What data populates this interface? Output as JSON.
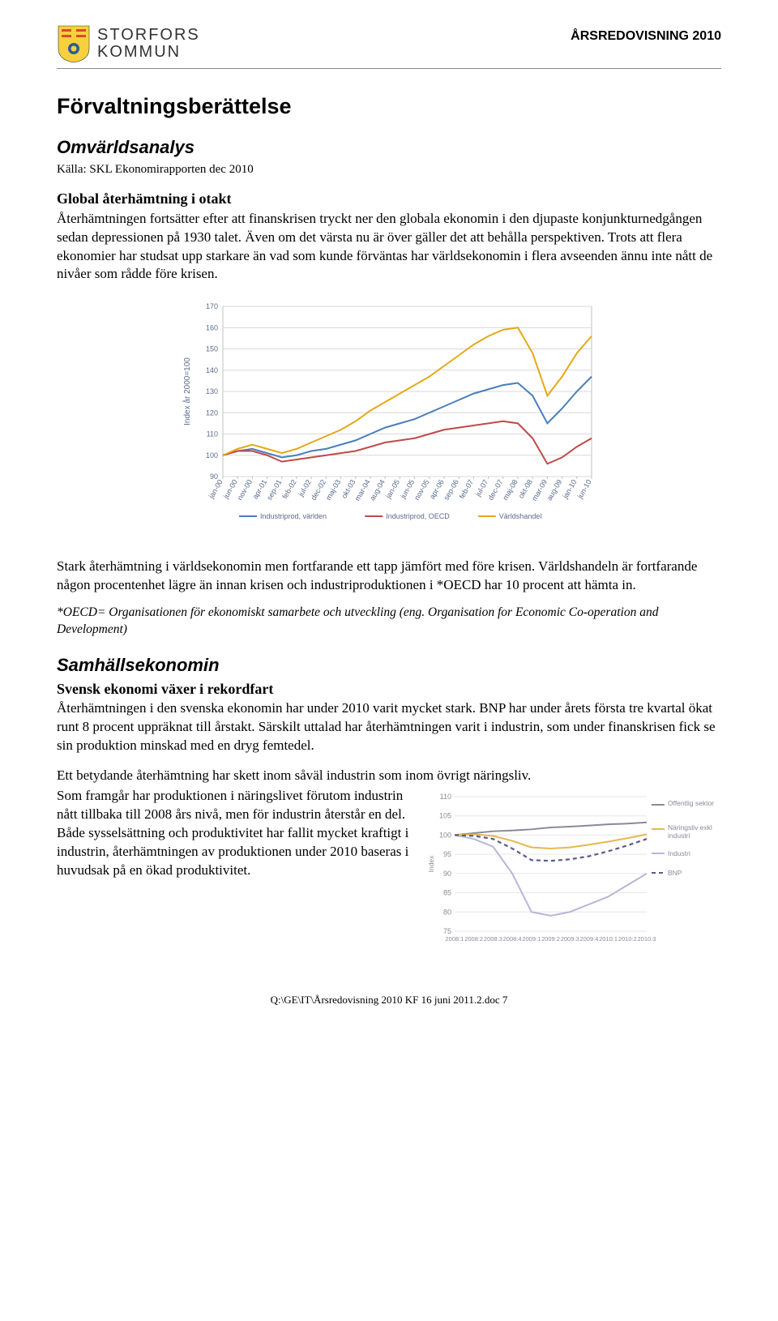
{
  "header": {
    "org_line1": "STORFORS",
    "org_line2": "KOMMUN",
    "doc_title": "ÅRSREDOVISNING 2010"
  },
  "sections": {
    "main_heading": "Förvaltningsberättelse",
    "sub1_heading": "Omvärldsanalys",
    "source": "Källa: SKL Ekonomirapporten dec 2010",
    "sub1a_heading": "Global återhämtning i otakt",
    "para1": "Återhämtningen fortsätter efter att finanskrisen tryckt ner den globala ekonomin i den djupaste konjunkturnedgången sedan depressionen på 1930 talet. Även om det värsta nu är över gäller det att behålla perspektiven. Trots att flera ekonomier har studsat upp starkare än vad som kunde förväntas har världsekonomin i flera avseenden ännu inte nått de nivåer som rådde före krisen.",
    "para2": "Stark återhämtning i världsekonomin men fortfarande ett tapp jämfört med före krisen. Världshandeln är fortfarande någon procentenhet lägre än innan krisen och industriproduktionen i *OECD har 10 procent att hämta in.",
    "footnote": "*OECD= Organisationen för ekonomiskt samarbete och utveckling (eng. Organisation for Economic Co-operation and Development)",
    "sub2_heading": "Samhällsekonomin",
    "sub2a_heading": "Svensk ekonomi växer i rekordfart",
    "para3": "Återhämtningen i den svenska ekonomin har under 2010 varit mycket stark. BNP har under årets första tre kvartal ökat runt 8 procent uppräknat till årstakt. Särskilt uttalad har återhämtningen varit i industrin, som under finanskrisen fick se sin produktion minskad med en dryg femtedel.",
    "para4a": "Ett betydande återhämtning har skett inom såväl industrin som inom övrigt näringsliv.",
    "para4b": "Som framgår har produktionen i näringslivet förutom industrin nått tillbaka till 2008 års nivå, men för industrin återstår en del. Både sysselsättning och produktivitet har fallit mycket kraftigt i industrin, återhämtningen av produktionen under 2010 baseras i huvudsak på en ökad produktivitet."
  },
  "chart1": {
    "type": "line",
    "y_axis_label": "Index år 2000=100",
    "ylim": [
      90,
      170
    ],
    "yticks": [
      90,
      100,
      110,
      120,
      130,
      140,
      150,
      160,
      170
    ],
    "x_labels": [
      "jan-00",
      "jun-00",
      "nov-00",
      "apr-01",
      "sep-01",
      "feb-02",
      "jul-02",
      "dec-02",
      "maj-03",
      "okt-03",
      "mar-04",
      "aug-04",
      "jan-05",
      "jun-05",
      "nov-05",
      "apr-06",
      "sep-06",
      "feb-07",
      "jul-07",
      "dec-07",
      "maj-08",
      "okt-08",
      "mar-09",
      "aug-09",
      "jan-10",
      "jun-10"
    ],
    "grid_color": "#d9d9d9",
    "background_color": "#ffffff",
    "axis_font_color": "#5b6b8c",
    "series": [
      {
        "name": "Industriprod, världen",
        "color": "#4a7ebb",
        "width": 2,
        "values": [
          100,
          102,
          103,
          101,
          99,
          100,
          102,
          103,
          105,
          107,
          110,
          113,
          115,
          117,
          120,
          123,
          126,
          129,
          131,
          133,
          134,
          128,
          115,
          122,
          130,
          137
        ]
      },
      {
        "name": "Industriprod, OECD",
        "color": "#be4b48",
        "width": 2,
        "values": [
          100,
          102,
          102,
          100,
          97,
          98,
          99,
          100,
          101,
          102,
          104,
          106,
          107,
          108,
          110,
          112,
          113,
          114,
          115,
          116,
          115,
          108,
          96,
          99,
          104,
          108
        ]
      },
      {
        "name": "Världshandel",
        "color": "#e6a817",
        "width": 2,
        "values": [
          100,
          103,
          105,
          103,
          101,
          103,
          106,
          109,
          112,
          116,
          121,
          125,
          129,
          133,
          137,
          142,
          147,
          152,
          156,
          159,
          160,
          148,
          128,
          137,
          148,
          156
        ]
      }
    ],
    "legend_items": [
      "Industriprod, världen",
      "Industriprod, OECD",
      "Världshandel"
    ]
  },
  "chart2": {
    "type": "line",
    "y_axis_label": "Index",
    "ylim": [
      75,
      110
    ],
    "yticks": [
      75,
      80,
      85,
      90,
      95,
      100,
      105,
      110
    ],
    "x_labels": [
      "2008:1",
      "2008:2",
      "2008:3",
      "2008:4",
      "2009:1",
      "2009:2",
      "2009:3",
      "2009:4",
      "2010:1",
      "2010:2",
      "2010:3"
    ],
    "grid_color": "#e6e6e6",
    "background_color": "#ffffff",
    "series": [
      {
        "name": "Offentlig sektor",
        "color": "#8a8a9a",
        "width": 2,
        "dash": null,
        "values": [
          100,
          100.5,
          101,
          101.2,
          101.5,
          102,
          102.2,
          102.5,
          102.8,
          103,
          103.3
        ]
      },
      {
        "name": "Näringsliv exkl industri",
        "color": "#e6b84f",
        "width": 2,
        "dash": null,
        "values": [
          100,
          100.2,
          99.8,
          98.5,
          96.8,
          96.5,
          96.8,
          97.5,
          98.3,
          99.2,
          100.2
        ]
      },
      {
        "name": "Industri",
        "color": "#b6b6d9",
        "width": 2,
        "dash": null,
        "values": [
          100,
          99,
          97,
          90,
          80,
          79,
          80,
          82,
          84,
          87,
          90
        ]
      },
      {
        "name": "BNP",
        "color": "#5b5b8c",
        "width": 2.2,
        "dash": "5,4",
        "values": [
          100,
          99.8,
          99,
          96.5,
          93.5,
          93.3,
          93.7,
          94.5,
          95.8,
          97.3,
          99
        ]
      }
    ],
    "legend_items": [
      "Offentlig sektor",
      "Näringsliv exkl industri",
      "Industri",
      "BNP"
    ]
  },
  "footer": {
    "path": "Q:\\GE\\IT\\Årsredovisning 2010 KF 16 juni 2011.2.doc",
    "page": "7"
  }
}
